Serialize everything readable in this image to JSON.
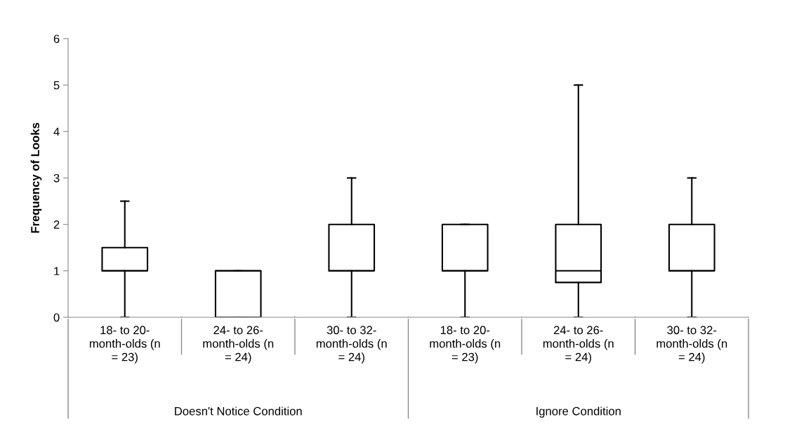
{
  "chart_data": {
    "type": "box",
    "ylabel": "Frequency of Looks",
    "categories": [
      "18- to 20-\nmonth-olds (n\n= 23)",
      "24- to 26-\nmonth-olds (n\n= 24)",
      "30- to 32-\nmonth-olds (n\n= 24)",
      "18- to 20-\nmonth-olds (n\n= 23)",
      "24- to 26-\nmonth-olds (n\n= 24)",
      "30- to 32-\nmonth-olds (n\n= 24)"
    ],
    "boxes": [
      {
        "low": 0,
        "q1": 1,
        "median": 1,
        "q3": 1.5,
        "high": 2.5
      },
      {
        "low": 0,
        "q1": 0,
        "median": 1,
        "q3": 1,
        "high": 1
      },
      {
        "low": 0,
        "q1": 1,
        "median": 1,
        "q3": 2,
        "high": 3
      },
      {
        "low": 0,
        "q1": 1,
        "median": 1,
        "q3": 2,
        "high": 2
      },
      {
        "low": 0,
        "q1": 0.75,
        "median": 1,
        "q3": 2,
        "high": 5
      },
      {
        "low": 0,
        "q1": 1,
        "median": 1,
        "q3": 2,
        "high": 3
      }
    ],
    "annotations": [
      "Doesn't Notice Condition",
      "Ignore Condition"
    ],
    "ylim": [
      0,
      6
    ],
    "yticks": [
      0,
      1,
      2,
      3,
      4,
      5,
      6
    ],
    "grid": false
  }
}
